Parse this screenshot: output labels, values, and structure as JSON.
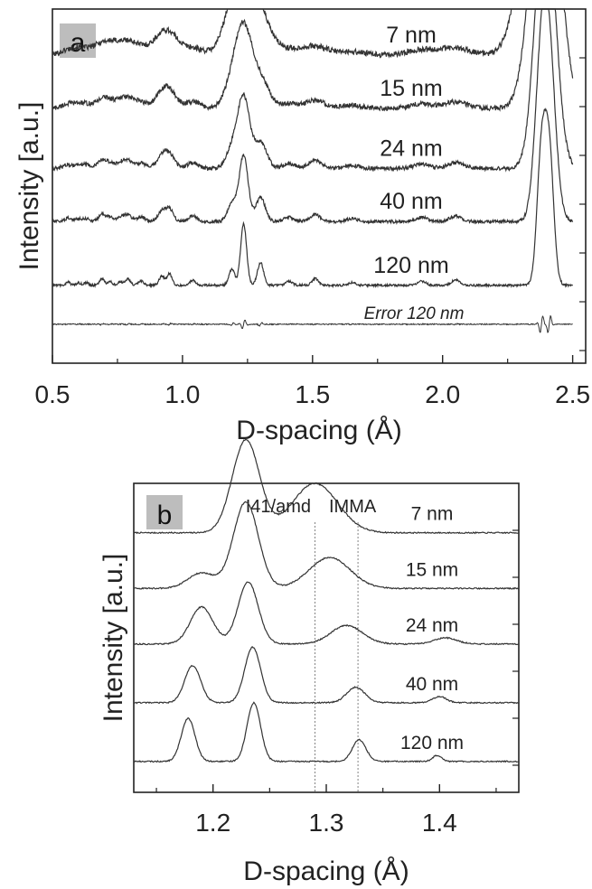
{
  "chart_data": [
    {
      "panel_label": "a",
      "type": "line",
      "xlabel": "D-spacing (Å)",
      "ylabel": "Intensity [a.u.]",
      "xlim": [
        0.5,
        2.55
      ],
      "x_ticks": [
        "0.5",
        "1.0",
        "1.5",
        "2.0",
        "2.5"
      ],
      "grid": false,
      "peak_positions": [
        0.56,
        0.6,
        0.63,
        0.69,
        0.72,
        0.76,
        0.79,
        0.84,
        0.92,
        0.95,
        1.04,
        1.19,
        1.235,
        1.3,
        1.41,
        1.51,
        1.65,
        1.92,
        2.05,
        2.38,
        2.41
      ],
      "series": [
        {
          "name": "7 nm",
          "offset": 0.87,
          "width": 0.03
        },
        {
          "name": "15 nm",
          "offset": 0.72,
          "width": 0.022
        },
        {
          "name": "24 nm",
          "offset": 0.55,
          "width": 0.016
        },
        {
          "name": "40 nm",
          "offset": 0.4,
          "width": 0.012
        },
        {
          "name": "120 nm",
          "offset": 0.22,
          "width": 0.008
        },
        {
          "name": "Error 120 nm",
          "offset": 0.11,
          "width": 0.0
        }
      ]
    },
    {
      "panel_label": "b",
      "type": "line",
      "xlabel": "D-spacing (Å)",
      "ylabel": "Intensity [a.u.]",
      "xlim": [
        1.13,
        1.47
      ],
      "x_ticks": [
        "1.2",
        "1.3",
        "1.4"
      ],
      "grid": false,
      "reference_lines": [
        {
          "label": "I41/amd",
          "x": 1.29
        },
        {
          "label": "IMMA",
          "x": 1.328
        }
      ],
      "series": [
        {
          "name": "7 nm",
          "offset": 0.84,
          "peaks": [
            [
              1.229,
              0.3,
              0.012
            ],
            [
              1.29,
              0.16,
              0.02
            ]
          ]
        },
        {
          "name": "15 nm",
          "offset": 0.66,
          "peaks": [
            [
              1.19,
              0.05,
              0.012
            ],
            [
              1.229,
              0.28,
              0.011
            ],
            [
              1.303,
              0.1,
              0.018
            ]
          ]
        },
        {
          "name": "24 nm",
          "offset": 0.48,
          "peaks": [
            [
              1.19,
              0.12,
              0.01
            ],
            [
              1.231,
              0.2,
              0.009
            ],
            [
              1.318,
              0.06,
              0.014
            ],
            [
              1.405,
              0.02,
              0.01
            ]
          ]
        },
        {
          "name": "40 nm",
          "offset": 0.29,
          "peaks": [
            [
              1.182,
              0.12,
              0.007
            ],
            [
              1.235,
              0.18,
              0.007
            ],
            [
              1.326,
              0.05,
              0.008
            ],
            [
              1.4,
              0.02,
              0.006
            ]
          ]
        },
        {
          "name": "120 nm",
          "offset": 0.1,
          "peaks": [
            [
              1.178,
              0.14,
              0.006
            ],
            [
              1.236,
              0.19,
              0.006
            ],
            [
              1.329,
              0.07,
              0.006
            ],
            [
              1.398,
              0.02,
              0.004
            ]
          ]
        }
      ]
    }
  ]
}
